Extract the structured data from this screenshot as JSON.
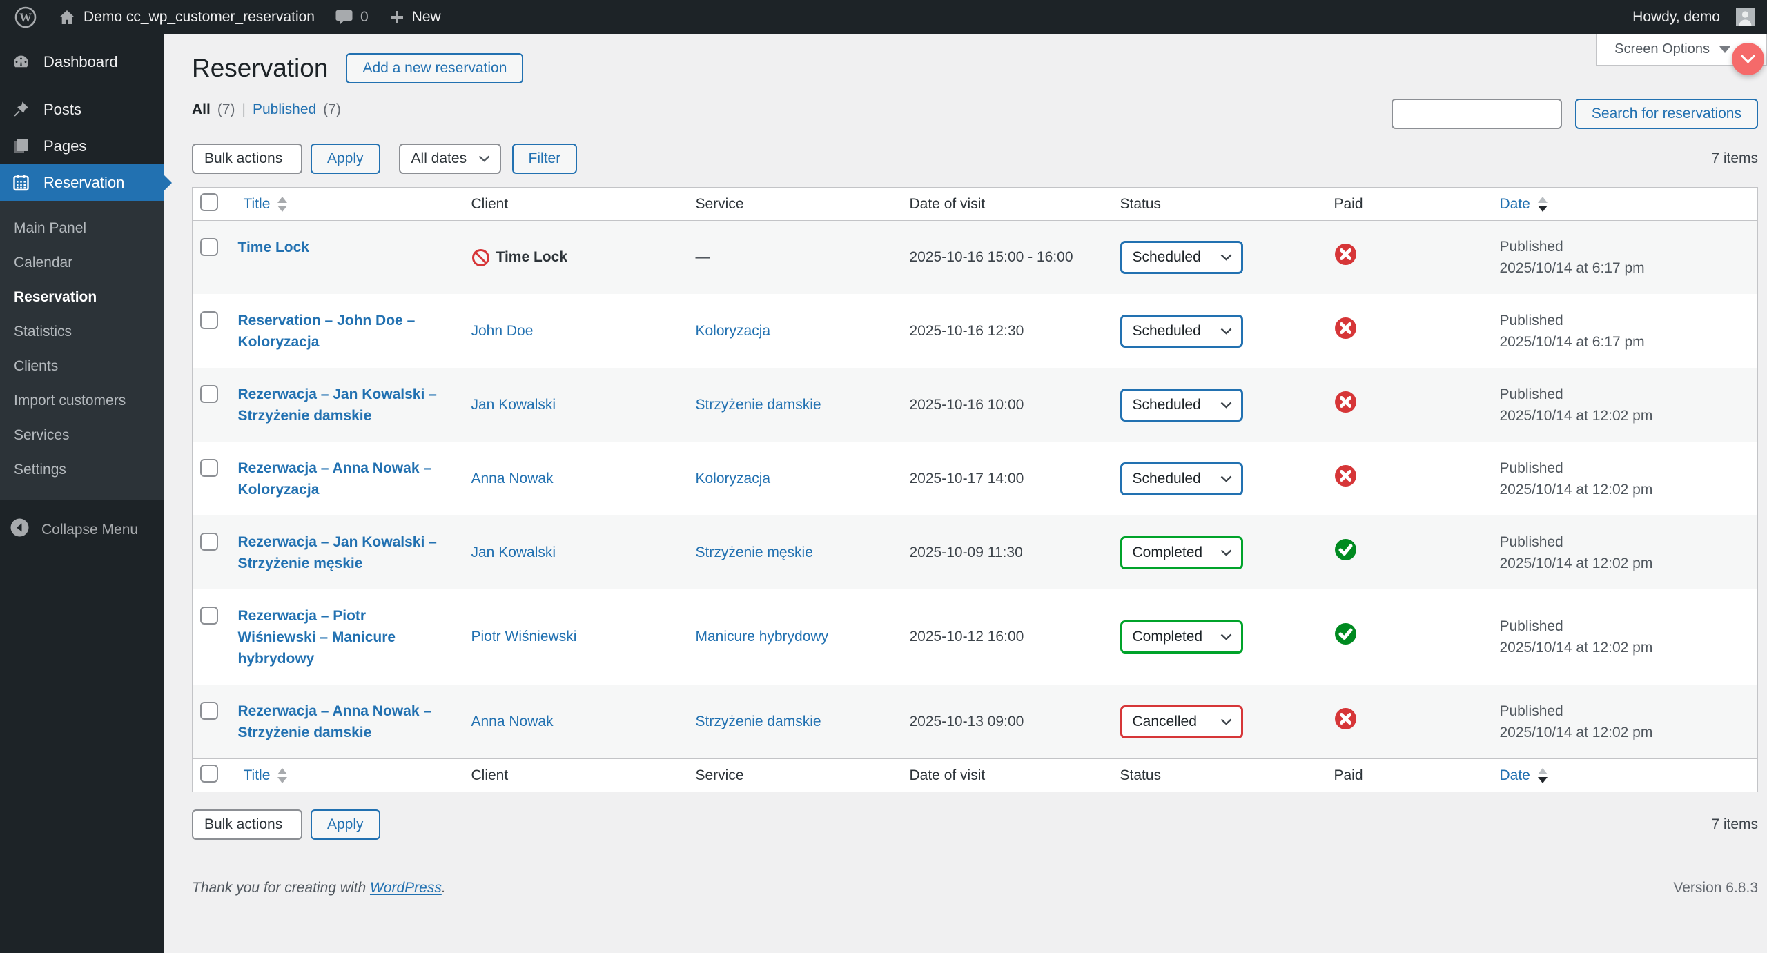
{
  "admin_bar": {
    "site_name": "Demo cc_wp_customer_reservation",
    "comments_count": "0",
    "new_label": "New",
    "howdy": "Howdy, demo"
  },
  "screen_options_label": "Screen Options",
  "sidebar": {
    "items": [
      {
        "label": "Dashboard"
      },
      {
        "label": "Posts"
      },
      {
        "label": "Pages"
      },
      {
        "label": "Reservation"
      }
    ],
    "submenu": [
      "Main Panel",
      "Calendar",
      "Reservation",
      "Statistics",
      "Clients",
      "Import customers",
      "Services",
      "Settings"
    ],
    "collapse_label": "Collapse Menu"
  },
  "page": {
    "title": "Reservation",
    "add_new_label": "Add a new reservation",
    "views": {
      "all_label": "All",
      "all_count": "(7)",
      "separator": "|",
      "published_label": "Published",
      "published_count": "(7)"
    },
    "bulk_actions_label": "Bulk actions",
    "apply_label": "Apply",
    "dates_filter_label": "All dates",
    "filter_label": "Filter",
    "search_button_label": "Search for reservations",
    "items_count": "7 items"
  },
  "table": {
    "columns": {
      "title": "Title",
      "client": "Client",
      "service": "Service",
      "visit": "Date of visit",
      "status": "Status",
      "paid": "Paid",
      "date": "Date"
    },
    "rows": [
      {
        "title": "Time Lock",
        "client": "Time Lock",
        "client_is_link": false,
        "service": "—",
        "service_is_link": false,
        "visit": "2025-10-16 15:00 - 16:00",
        "status": "Scheduled",
        "status_variant": "scheduled",
        "paid": false,
        "published_label": "Published",
        "published_date": "2025/10/14 at 6:17 pm"
      },
      {
        "title": "Reservation – John Doe – Koloryzacja",
        "client": "John Doe",
        "client_is_link": true,
        "service": "Koloryzacja",
        "service_is_link": true,
        "visit": "2025-10-16 12:30",
        "status": "Scheduled",
        "status_variant": "scheduled",
        "paid": false,
        "published_label": "Published",
        "published_date": "2025/10/14 at 6:17 pm"
      },
      {
        "title": "Rezerwacja – Jan Kowalski – Strzyżenie damskie",
        "client": "Jan Kowalski",
        "client_is_link": true,
        "service": "Strzyżenie damskie",
        "service_is_link": true,
        "visit": "2025-10-16 10:00",
        "status": "Scheduled",
        "status_variant": "scheduled",
        "paid": false,
        "published_label": "Published",
        "published_date": "2025/10/14 at 12:02 pm"
      },
      {
        "title": "Rezerwacja – Anna Nowak – Koloryzacja",
        "client": "Anna Nowak",
        "client_is_link": true,
        "service": "Koloryzacja",
        "service_is_link": true,
        "visit": "2025-10-17 14:00",
        "status": "Scheduled",
        "status_variant": "scheduled",
        "paid": false,
        "published_label": "Published",
        "published_date": "2025/10/14 at 12:02 pm"
      },
      {
        "title": "Rezerwacja – Jan Kowalski – Strzyżenie męskie",
        "client": "Jan Kowalski",
        "client_is_link": true,
        "service": "Strzyżenie męskie",
        "service_is_link": true,
        "visit": "2025-10-09 11:30",
        "status": "Completed",
        "status_variant": "completed",
        "paid": true,
        "published_label": "Published",
        "published_date": "2025/10/14 at 12:02 pm"
      },
      {
        "title": "Rezerwacja – Piotr Wiśniewski – Manicure hybrydowy",
        "client": "Piotr Wiśniewski",
        "client_is_link": true,
        "service": "Manicure hybrydowy",
        "service_is_link": true,
        "visit": "2025-10-12 16:00",
        "status": "Completed",
        "status_variant": "completed",
        "paid": true,
        "published_label": "Published",
        "published_date": "2025/10/14 at 12:02 pm"
      },
      {
        "title": "Rezerwacja – Anna Nowak – Strzyżenie damskie",
        "client": "Anna Nowak",
        "client_is_link": true,
        "service": "Strzyżenie damskie",
        "service_is_link": true,
        "visit": "2025-10-13 09:00",
        "status": "Cancelled",
        "status_variant": "cancelled",
        "paid": false,
        "published_label": "Published",
        "published_date": "2025/10/14 at 12:02 pm"
      }
    ]
  },
  "footer": {
    "thanks_prefix": "Thank you for creating with ",
    "wordpress_link": "WordPress",
    "thanks_suffix": ".",
    "version": "Version 6.8.3"
  },
  "colors": {
    "accent_blue": "#2271b1",
    "status_scheduled": "#2271b1",
    "status_completed": "#00a32a",
    "status_cancelled": "#d63638",
    "paid_yes_green": "#008a20",
    "paid_no_red": "#d63638",
    "fab_red": "#f56a6a",
    "sidebar_bg": "#1d2327",
    "submenu_bg": "#2c3338"
  }
}
